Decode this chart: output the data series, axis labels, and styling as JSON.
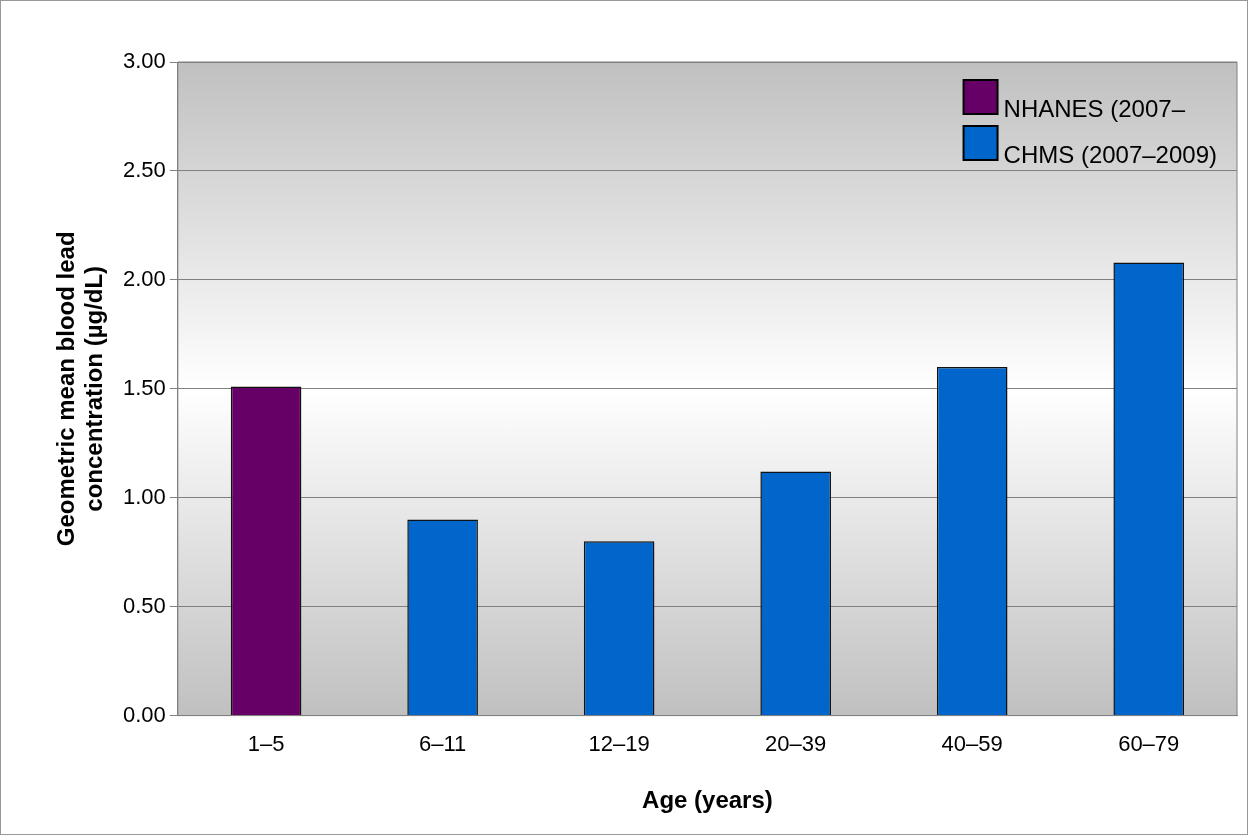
{
  "chart_data": {
    "type": "bar",
    "xlabel": "Age (years)",
    "ylabel": "Geometric mean blood lead concentration (µg/dL)",
    "categories": [
      "1–5",
      "6–11",
      "12–19",
      "20–39",
      "40–59",
      "60–79"
    ],
    "series": [
      {
        "name": "NHANES (2007–",
        "color": "#660066",
        "values": [
          1.51,
          null,
          null,
          null,
          null,
          null
        ]
      },
      {
        "name": "CHMS (2007–2009)",
        "color": "#0066cc",
        "values": [
          null,
          0.9,
          0.8,
          1.12,
          1.6,
          2.08
        ]
      }
    ],
    "ylim": [
      0,
      3
    ],
    "yticks": [
      {
        "value": 0,
        "label": "0.00"
      },
      {
        "value": 0.5,
        "label": "0.50"
      },
      {
        "value": 1,
        "label": "1.00"
      },
      {
        "value": 1.5,
        "label": "1.50"
      },
      {
        "value": 2,
        "label": "2.00"
      },
      {
        "value": 2.5,
        "label": "2.50"
      },
      {
        "value": 3,
        "label": "3.00"
      }
    ],
    "grid": "y",
    "legend": "top right"
  }
}
